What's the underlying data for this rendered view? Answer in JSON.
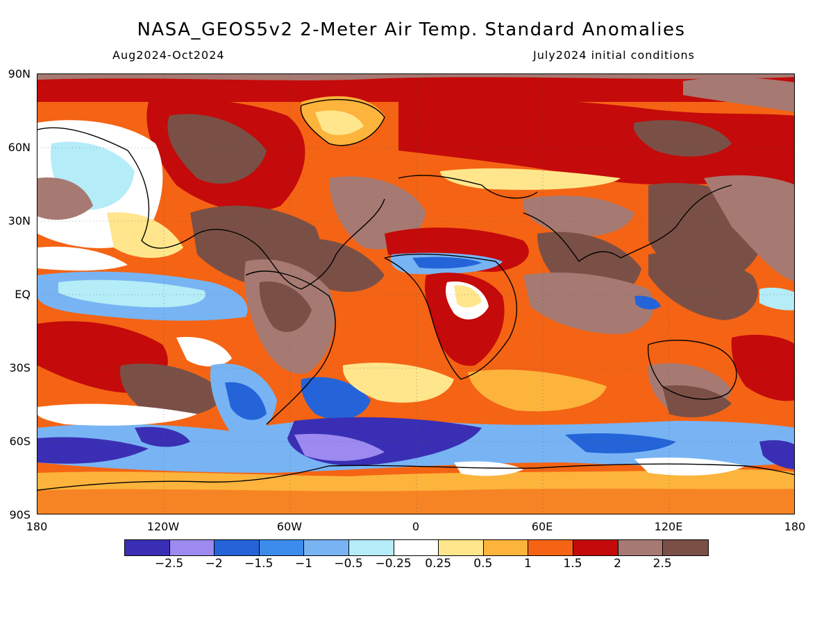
{
  "header": {
    "title": "NASA_GEOS5v2 2-Meter Air Temp. Standard Anomalies",
    "period": "Aug2024-Oct2024",
    "initial_conditions": "July2024 initial conditions"
  },
  "map": {
    "lat_labels": [
      "90N",
      "60N",
      "30N",
      "EQ",
      "30S",
      "60S",
      "90S"
    ],
    "lon_labels": [
      "180",
      "120W",
      "60W",
      "0",
      "60E",
      "120E",
      "180"
    ]
  },
  "legend": {
    "colors": [
      "#3a2fb4",
      "#9c8af0",
      "#2464d8",
      "#3c8cec",
      "#78b4f4",
      "#b4ecf8",
      "#ffffff",
      "#ffe68c",
      "#fcb43c",
      "#f46414",
      "#c40a0a",
      "#a67a72",
      "#7a5046"
    ],
    "labels": [
      "-2.5",
      "-2",
      "-1.5",
      "-1",
      "-0.5",
      "-0.25",
      "0.25",
      "0.5",
      "1",
      "1.5",
      "2",
      "2.5"
    ]
  }
}
